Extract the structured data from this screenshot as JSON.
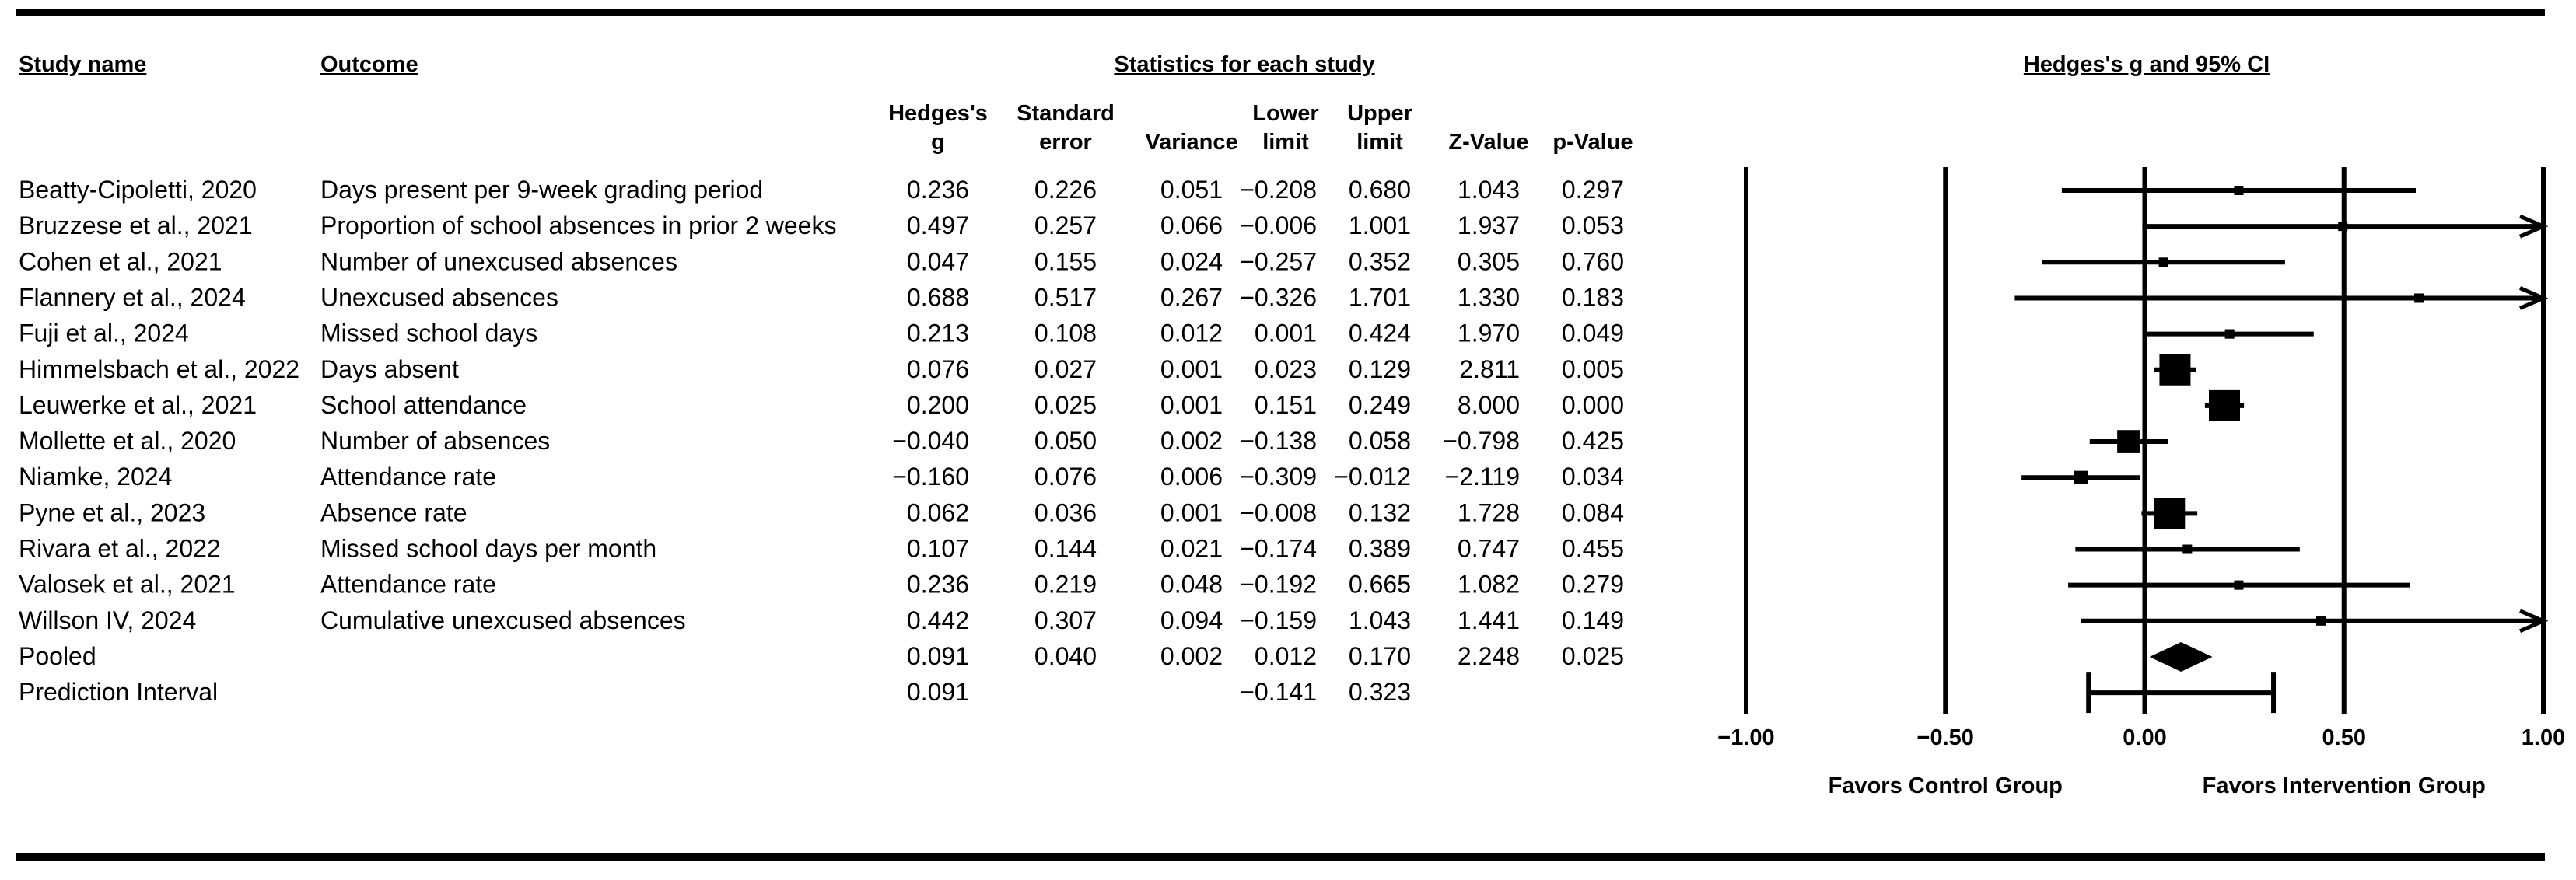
{
  "headers": {
    "study_name": "Study name",
    "outcome": "Outcome",
    "stats_group": "Statistics for each study",
    "plot_title": "Hedges's g and 95% CI",
    "columns": [
      [
        "Hedges's",
        "g"
      ],
      [
        "Standard",
        "error"
      ],
      [
        "Variance"
      ],
      [
        "Lower",
        "limit"
      ],
      [
        "Upper",
        "limit"
      ],
      [
        "Z-Value"
      ],
      [
        "p-Value"
      ]
    ]
  },
  "rows": [
    {
      "study": "Beatty-Cipoletti, 2020",
      "outcome": "Days present per 9-week grading period",
      "g": "0.236",
      "se": "0.226",
      "var": "0.051",
      "lower": "−0.208",
      "upper": "0.680",
      "z": "1.043",
      "p": "0.297"
    },
    {
      "study": "Bruzzese et al., 2021",
      "outcome": "Proportion of school absences in prior 2 weeks",
      "g": "0.497",
      "se": "0.257",
      "var": "0.066",
      "lower": "−0.006",
      "upper": "1.001",
      "z": "1.937",
      "p": "0.053"
    },
    {
      "study": "Cohen et al., 2021",
      "outcome": "Number of unexcused absences",
      "g": "0.047",
      "se": "0.155",
      "var": "0.024",
      "lower": "−0.257",
      "upper": "0.352",
      "z": "0.305",
      "p": "0.760"
    },
    {
      "study": "Flannery et al., 2024",
      "outcome": "Unexcused absences",
      "g": "0.688",
      "se": "0.517",
      "var": "0.267",
      "lower": "−0.326",
      "upper": "1.701",
      "z": "1.330",
      "p": "0.183"
    },
    {
      "study": "Fuji et al., 2024",
      "outcome": "Missed school days",
      "g": "0.213",
      "se": "0.108",
      "var": "0.012",
      "lower": "0.001",
      "upper": "0.424",
      "z": "1.970",
      "p": "0.049"
    },
    {
      "study": "Himmelsbach et al., 2022",
      "outcome": "Days absent",
      "g": "0.076",
      "se": "0.027",
      "var": "0.001",
      "lower": "0.023",
      "upper": "0.129",
      "z": "2.811",
      "p": "0.005"
    },
    {
      "study": "Leuwerke et al., 2021",
      "outcome": "School attendance",
      "g": "0.200",
      "se": "0.025",
      "var": "0.001",
      "lower": "0.151",
      "upper": "0.249",
      "z": "8.000",
      "p": "0.000"
    },
    {
      "study": "Mollette et al., 2020",
      "outcome": "Number of absences",
      "g": "−0.040",
      "se": "0.050",
      "var": "0.002",
      "lower": "−0.138",
      "upper": "0.058",
      "z": "−0.798",
      "p": "0.425"
    },
    {
      "study": "Niamke, 2024",
      "outcome": "Attendance rate",
      "g": "−0.160",
      "se": "0.076",
      "var": "0.006",
      "lower": "−0.309",
      "upper": "−0.012",
      "z": "−2.119",
      "p": "0.034"
    },
    {
      "study": "Pyne et al., 2023",
      "outcome": "Absence rate",
      "g": "0.062",
      "se": "0.036",
      "var": "0.001",
      "lower": "−0.008",
      "upper": "0.132",
      "z": "1.728",
      "p": "0.084"
    },
    {
      "study": "Rivara et al., 2022",
      "outcome": "Missed school days per month",
      "g": "0.107",
      "se": "0.144",
      "var": "0.021",
      "lower": "−0.174",
      "upper": "0.389",
      "z": "0.747",
      "p": "0.455"
    },
    {
      "study": "Valosek et al., 2021",
      "outcome": "Attendance rate",
      "g": "0.236",
      "se": "0.219",
      "var": "0.048",
      "lower": "−0.192",
      "upper": "0.665",
      "z": "1.082",
      "p": "0.279"
    },
    {
      "study": "Willson IV, 2024",
      "outcome": "Cumulative unexcused absences",
      "g": "0.442",
      "se": "0.307",
      "var": "0.094",
      "lower": "−0.159",
      "upper": "1.043",
      "z": "1.441",
      "p": "0.149"
    },
    {
      "study": "Pooled",
      "outcome": "",
      "g": "0.091",
      "se": "0.040",
      "var": "0.002",
      "lower": "0.012",
      "upper": "0.170",
      "z": "2.248",
      "p": "0.025"
    },
    {
      "study": "Prediction Interval",
      "outcome": "",
      "g": "0.091",
      "se": "",
      "var": "",
      "lower": "−0.141",
      "upper": "0.323",
      "z": "",
      "p": ""
    }
  ],
  "chart_data": {
    "type": "forest",
    "title": "Hedges's g and 95% CI",
    "xlim": [
      -1.0,
      1.0
    ],
    "xticks": [
      -1.0,
      -0.5,
      0.0,
      0.5,
      1.0
    ],
    "xtick_labels": [
      "−1.00",
      "−0.50",
      "0.00",
      "0.50",
      "1.00"
    ],
    "favors_left": "Favors Control Group",
    "favors_right": "Favors Intervention Group",
    "studies": [
      {
        "name": "Beatty-Cipoletti, 2020",
        "g": 0.236,
        "lower": -0.208,
        "upper": 0.68,
        "weight_var": 0.051
      },
      {
        "name": "Bruzzese et al., 2021",
        "g": 0.497,
        "lower": -0.006,
        "upper": 1.001,
        "weight_var": 0.066
      },
      {
        "name": "Cohen et al., 2021",
        "g": 0.047,
        "lower": -0.257,
        "upper": 0.352,
        "weight_var": 0.024
      },
      {
        "name": "Flannery et al., 2024",
        "g": 0.688,
        "lower": -0.326,
        "upper": 1.701,
        "weight_var": 0.267
      },
      {
        "name": "Fuji et al., 2024",
        "g": 0.213,
        "lower": 0.001,
        "upper": 0.424,
        "weight_var": 0.012
      },
      {
        "name": "Himmelsbach et al., 2022",
        "g": 0.076,
        "lower": 0.023,
        "upper": 0.129,
        "weight_var": 0.001
      },
      {
        "name": "Leuwerke et al., 2021",
        "g": 0.2,
        "lower": 0.151,
        "upper": 0.249,
        "weight_var": 0.001
      },
      {
        "name": "Mollette et al., 2020",
        "g": -0.04,
        "lower": -0.138,
        "upper": 0.058,
        "weight_var": 0.002
      },
      {
        "name": "Niamke, 2024",
        "g": -0.16,
        "lower": -0.309,
        "upper": -0.012,
        "weight_var": 0.006
      },
      {
        "name": "Pyne et al., 2023",
        "g": 0.062,
        "lower": -0.008,
        "upper": 0.132,
        "weight_var": 0.001
      },
      {
        "name": "Rivara et al., 2022",
        "g": 0.107,
        "lower": -0.174,
        "upper": 0.389,
        "weight_var": 0.021
      },
      {
        "name": "Valosek et al., 2021",
        "g": 0.236,
        "lower": -0.192,
        "upper": 0.665,
        "weight_var": 0.048
      },
      {
        "name": "Willson IV, 2024",
        "g": 0.442,
        "lower": -0.159,
        "upper": 1.043,
        "weight_var": 0.094
      }
    ],
    "pooled": {
      "g": 0.091,
      "lower": 0.012,
      "upper": 0.17
    },
    "prediction_interval": {
      "g": 0.091,
      "lower": -0.141,
      "upper": 0.323
    }
  }
}
